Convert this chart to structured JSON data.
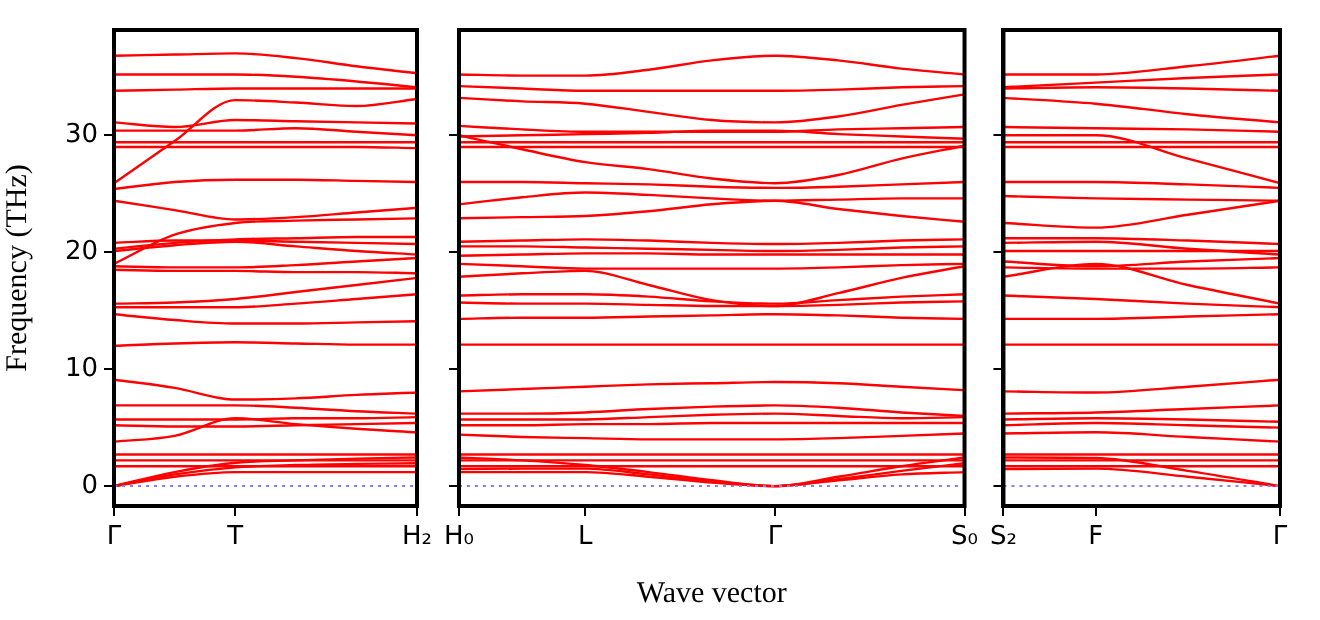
{
  "chart_data": [
    {
      "type": "line",
      "ylabel": "Frequency (THz)",
      "categories": [
        "Γ",
        null,
        "T",
        null,
        null,
        "H₂"
      ],
      "ylim": [
        -1.7,
        39
      ],
      "yticks": [
        0,
        10,
        20,
        30
      ],
      "ref_lines": [
        {
          "axis": "y",
          "value": 0,
          "color": "#8080ff",
          "line_style": "dotted"
        }
      ],
      "series": [
        {
          "color": "#ff0000",
          "values": [
            36.8,
            36.9,
            37.0,
            36.6,
            35.9,
            35.3
          ]
        },
        {
          "color": "#ff0000",
          "values": [
            35.2,
            35.2,
            35.2,
            35.0,
            34.6,
            34.1
          ]
        },
        {
          "color": "#ff0000",
          "values": [
            33.8,
            33.9,
            34.0,
            34.0,
            34.0,
            34.0
          ]
        },
        {
          "color": "#ff0000",
          "values": [
            25.9,
            29.5,
            33.0,
            32.8,
            32.5,
            33.1
          ]
        },
        {
          "color": "#ff0000",
          "values": [
            31.1,
            30.7,
            31.3,
            31.2,
            31.1,
            31.0
          ]
        },
        {
          "color": "#ff0000",
          "values": [
            30.4,
            30.4,
            30.4,
            30.6,
            30.3,
            30.0
          ]
        },
        {
          "color": "#ff0000",
          "values": [
            29.4,
            29.4,
            29.4,
            29.4,
            29.4,
            29.4
          ]
        },
        {
          "color": "#ff0000",
          "values": [
            29.0,
            29.0,
            29.0,
            29.0,
            29.0,
            28.9
          ]
        },
        {
          "color": "#ff0000",
          "values": [
            25.4,
            26.0,
            26.2,
            26.2,
            26.1,
            26.0
          ]
        },
        {
          "color": "#ff0000",
          "values": [
            24.4,
            23.6,
            22.8,
            23.0,
            23.4,
            23.8
          ]
        },
        {
          "color": "#ff0000",
          "values": [
            19.0,
            21.5,
            22.5,
            22.7,
            22.8,
            22.9
          ]
        },
        {
          "color": "#ff0000",
          "values": [
            20.3,
            20.8,
            21.1,
            21.2,
            21.3,
            21.3
          ]
        },
        {
          "color": "#ff0000",
          "values": [
            20.8,
            21.0,
            21.0,
            20.9,
            20.8,
            20.7
          ]
        },
        {
          "color": "#ff0000",
          "values": [
            20.1,
            20.6,
            20.9,
            20.5,
            20.1,
            19.8
          ]
        },
        {
          "color": "#ff0000",
          "values": [
            18.8,
            18.7,
            18.7,
            18.9,
            19.2,
            19.5
          ]
        },
        {
          "color": "#ff0000",
          "values": [
            18.5,
            18.4,
            18.4,
            18.3,
            18.3,
            18.2
          ]
        },
        {
          "color": "#ff0000",
          "values": [
            15.6,
            15.7,
            16.0,
            16.6,
            17.2,
            17.8
          ]
        },
        {
          "color": "#ff0000",
          "values": [
            15.3,
            15.3,
            15.3,
            15.6,
            16.0,
            16.4
          ]
        },
        {
          "color": "#ff0000",
          "values": [
            14.7,
            14.2,
            13.9,
            13.9,
            14.0,
            14.1
          ]
        },
        {
          "color": "#ff0000",
          "values": [
            12.0,
            12.2,
            12.3,
            12.2,
            12.1,
            12.1
          ]
        },
        {
          "color": "#ff0000",
          "values": [
            9.1,
            8.4,
            7.4,
            7.5,
            7.8,
            8.0
          ]
        },
        {
          "color": "#ff0000",
          "values": [
            6.9,
            6.9,
            6.9,
            6.7,
            6.4,
            6.2
          ]
        },
        {
          "color": "#ff0000",
          "values": [
            5.7,
            5.7,
            5.7,
            5.8,
            5.8,
            5.9
          ]
        },
        {
          "color": "#ff0000",
          "values": [
            5.2,
            5.1,
            5.1,
            5.2,
            5.3,
            5.4
          ]
        },
        {
          "color": "#ff0000",
          "values": [
            3.8,
            4.3,
            5.8,
            5.3,
            4.9,
            4.6
          ]
        },
        {
          "color": "#ff0000",
          "values": [
            2.7,
            2.7,
            2.7,
            2.7,
            2.7,
            2.7
          ]
        },
        {
          "color": "#ff0000",
          "values": [
            2.2,
            2.2,
            2.2,
            2.2,
            2.2,
            2.2
          ]
        },
        {
          "color": "#ff0000",
          "values": [
            1.7,
            1.7,
            1.7,
            1.7,
            1.7,
            1.7
          ]
        },
        {
          "color": "#ff0000",
          "values": [
            0,
            0.8,
            1.2,
            1.2,
            1.2,
            1.2
          ]
        },
        {
          "color": "#ff0000",
          "values": [
            0,
            1.0,
            1.6,
            1.8,
            1.9,
            1.95
          ]
        },
        {
          "color": "#ff0000",
          "values": [
            0,
            1.2,
            2.0,
            2.2,
            2.35,
            2.45
          ]
        }
      ]
    },
    {
      "type": "line",
      "xlabel": "Wave vector",
      "tick_labels": "x",
      "categories": [
        "H₀",
        null,
        "L",
        null,
        null,
        "Γ",
        null,
        null,
        "S₀"
      ],
      "ylim": [
        -1.7,
        39
      ],
      "yticks": [
        0,
        10,
        20,
        30
      ],
      "ref_lines": [
        {
          "axis": "y",
          "value": 0,
          "color": "#8080ff",
          "line_style": "dotted"
        }
      ],
      "series": [
        {
          "color": "#ff0000",
          "values": [
            35.2,
            35.1,
            35.1,
            35.6,
            36.4,
            36.8,
            36.4,
            35.7,
            35.2
          ]
        },
        {
          "color": "#ff0000",
          "values": [
            34.2,
            34.0,
            33.8,
            33.8,
            33.8,
            33.8,
            33.9,
            34.1,
            34.2
          ]
        },
        {
          "color": "#ff0000",
          "values": [
            33.2,
            32.9,
            32.7,
            32.0,
            31.3,
            31.1,
            31.6,
            32.6,
            33.5
          ]
        },
        {
          "color": "#ff0000",
          "values": [
            30.8,
            30.5,
            30.3,
            30.3,
            30.3,
            30.3,
            30.5,
            30.6,
            30.7
          ]
        },
        {
          "color": "#ff0000",
          "values": [
            29.9,
            30.0,
            30.1,
            30.2,
            30.4,
            30.4,
            30.1,
            29.9,
            29.7
          ]
        },
        {
          "color": "#ff0000",
          "values": [
            29.4,
            29.4,
            29.4,
            29.4,
            29.4,
            29.4,
            29.4,
            29.4,
            29.4
          ]
        },
        {
          "color": "#ff0000",
          "values": [
            29.0,
            29.0,
            29.0,
            29.0,
            29.0,
            29.0,
            29.0,
            29.0,
            29.0
          ]
        },
        {
          "color": "#ff0000",
          "values": [
            30.0,
            28.8,
            27.7,
            27.1,
            26.3,
            25.9,
            26.6,
            28.0,
            29.1
          ]
        },
        {
          "color": "#ff0000",
          "values": [
            26.0,
            26.0,
            25.9,
            25.8,
            25.6,
            25.5,
            25.6,
            25.8,
            26.0
          ]
        },
        {
          "color": "#ff0000",
          "values": [
            24.1,
            24.7,
            25.1,
            24.9,
            24.6,
            24.4,
            24.5,
            24.6,
            24.6
          ]
        },
        {
          "color": "#ff0000",
          "values": [
            22.9,
            23.0,
            23.1,
            23.5,
            24.1,
            24.4,
            23.7,
            23.1,
            22.6
          ]
        },
        {
          "color": "#ff0000",
          "values": [
            20.9,
            21.0,
            21.1,
            21.0,
            20.8,
            20.7,
            20.8,
            21.0,
            21.1
          ]
        },
        {
          "color": "#ff0000",
          "values": [
            20.5,
            20.5,
            20.4,
            20.3,
            20.2,
            20.1,
            20.2,
            20.4,
            20.5
          ]
        },
        {
          "color": "#ff0000",
          "values": [
            19.7,
            19.8,
            19.9,
            19.9,
            19.8,
            19.8,
            19.8,
            19.8,
            19.8
          ]
        },
        {
          "color": "#ff0000",
          "values": [
            19.0,
            18.8,
            18.6,
            18.6,
            18.6,
            18.6,
            18.7,
            18.9,
            19.0
          ]
        },
        {
          "color": "#ff0000",
          "values": [
            16.3,
            16.4,
            16.4,
            16.2,
            15.8,
            15.6,
            15.9,
            16.2,
            16.4
          ]
        },
        {
          "color": "#ff0000",
          "values": [
            17.9,
            18.2,
            18.4,
            17.2,
            15.9,
            15.4,
            16.5,
            17.8,
            18.8
          ]
        },
        {
          "color": "#ff0000",
          "values": [
            15.7,
            15.6,
            15.6,
            15.5,
            15.4,
            15.4,
            15.5,
            15.7,
            15.8
          ]
        },
        {
          "color": "#ff0000",
          "values": [
            14.3,
            14.4,
            14.4,
            14.5,
            14.6,
            14.7,
            14.6,
            14.4,
            14.3
          ]
        },
        {
          "color": "#ff0000",
          "values": [
            12.1,
            12.1,
            12.1,
            12.1,
            12.1,
            12.1,
            12.1,
            12.1,
            12.1
          ]
        },
        {
          "color": "#ff0000",
          "values": [
            8.1,
            8.3,
            8.5,
            8.7,
            8.8,
            8.9,
            8.8,
            8.5,
            8.2
          ]
        },
        {
          "color": "#ff0000",
          "values": [
            6.2,
            6.2,
            6.3,
            6.6,
            6.8,
            6.9,
            6.7,
            6.3,
            6.0
          ]
        },
        {
          "color": "#ff0000",
          "values": [
            5.7,
            5.7,
            5.7,
            5.9,
            6.1,
            6.2,
            6.0,
            5.8,
            5.9
          ]
        },
        {
          "color": "#ff0000",
          "values": [
            5.2,
            5.2,
            5.3,
            5.3,
            5.4,
            5.4,
            5.4,
            5.4,
            5.4
          ]
        },
        {
          "color": "#ff0000",
          "values": [
            4.4,
            4.2,
            4.1,
            4.0,
            4.0,
            4.0,
            4.1,
            4.3,
            4.5
          ]
        },
        {
          "color": "#ff0000",
          "values": [
            2.7,
            2.7,
            2.7,
            2.7,
            2.7,
            2.7,
            2.7,
            2.7,
            2.7
          ]
        },
        {
          "color": "#ff0000",
          "values": [
            2.2,
            2.2,
            2.2,
            2.2,
            2.2,
            2.2,
            2.2,
            2.2,
            2.2
          ]
        },
        {
          "color": "#ff0000",
          "values": [
            1.7,
            1.7,
            1.7,
            1.7,
            1.7,
            1.7,
            1.7,
            1.7,
            1.7
          ]
        },
        {
          "color": "#ff0000",
          "values": [
            2.45,
            2.2,
            1.8,
            1.2,
            0.5,
            0,
            0.5,
            1.0,
            1.2
          ]
        },
        {
          "color": "#ff0000",
          "values": [
            1.45,
            1.5,
            1.5,
            1.0,
            0.4,
            0,
            0.8,
            1.7,
            2.45
          ]
        },
        {
          "color": "#ff0000",
          "values": [
            1.2,
            1.2,
            1.2,
            0.8,
            0.3,
            0,
            0.6,
            1.3,
            1.95
          ]
        }
      ]
    },
    {
      "type": "line",
      "tick_labels": "x",
      "categories": [
        "S₂",
        "F",
        null,
        "Γ"
      ],
      "ylim": [
        -1.7,
        39
      ],
      "yticks": [
        0,
        10,
        20,
        30
      ],
      "ref_lines": [
        {
          "axis": "y",
          "value": 0,
          "color": "#8080ff",
          "line_style": "dotted"
        }
      ],
      "series": [
        {
          "color": "#ff0000",
          "values": [
            35.2,
            35.2,
            35.9,
            36.8
          ]
        },
        {
          "color": "#ff0000",
          "values": [
            34.1,
            34.5,
            34.9,
            35.2
          ]
        },
        {
          "color": "#ff0000",
          "values": [
            34.0,
            34.1,
            34.0,
            33.8
          ]
        },
        {
          "color": "#ff0000",
          "values": [
            33.2,
            32.7,
            31.8,
            31.1
          ]
        },
        {
          "color": "#ff0000",
          "values": [
            30.7,
            30.6,
            30.5,
            30.3
          ]
        },
        {
          "color": "#ff0000",
          "values": [
            30.0,
            30.0,
            28.0,
            25.9
          ]
        },
        {
          "color": "#ff0000",
          "values": [
            29.4,
            29.4,
            29.4,
            29.4
          ]
        },
        {
          "color": "#ff0000",
          "values": [
            29.0,
            29.0,
            29.0,
            29.0
          ]
        },
        {
          "color": "#ff0000",
          "values": [
            26.0,
            26.0,
            25.8,
            25.5
          ]
        },
        {
          "color": "#ff0000",
          "values": [
            24.8,
            24.6,
            24.5,
            24.4
          ]
        },
        {
          "color": "#ff0000",
          "values": [
            22.5,
            22.1,
            23.2,
            24.4
          ]
        },
        {
          "color": "#ff0000",
          "values": [
            21.2,
            21.2,
            21.0,
            20.7
          ]
        },
        {
          "color": "#ff0000",
          "values": [
            20.8,
            20.9,
            20.3,
            19.8
          ]
        },
        {
          "color": "#ff0000",
          "values": [
            20.1,
            20.1,
            20.1,
            20.1
          ]
        },
        {
          "color": "#ff0000",
          "values": [
            19.2,
            18.8,
            19.2,
            19.5
          ]
        },
        {
          "color": "#ff0000",
          "values": [
            18.7,
            18.6,
            18.6,
            18.7
          ]
        },
        {
          "color": "#ff0000",
          "values": [
            17.9,
            19.0,
            17.2,
            15.6
          ]
        },
        {
          "color": "#ff0000",
          "values": [
            16.3,
            16.0,
            15.6,
            15.3
          ]
        },
        {
          "color": "#ff0000",
          "values": [
            14.3,
            14.3,
            14.5,
            14.7
          ]
        },
        {
          "color": "#ff0000",
          "values": [
            12.1,
            12.1,
            12.1,
            12.1
          ]
        },
        {
          "color": "#ff0000",
          "values": [
            8.1,
            8.0,
            8.5,
            9.1
          ]
        },
        {
          "color": "#ff0000",
          "values": [
            6.2,
            6.3,
            6.6,
            6.9
          ]
        },
        {
          "color": "#ff0000",
          "values": [
            5.7,
            5.8,
            5.7,
            5.5
          ]
        },
        {
          "color": "#ff0000",
          "values": [
            5.2,
            5.4,
            5.2,
            5.0
          ]
        },
        {
          "color": "#ff0000",
          "values": [
            4.5,
            4.6,
            4.2,
            3.8
          ]
        },
        {
          "color": "#ff0000",
          "values": [
            2.7,
            2.7,
            2.7,
            2.7
          ]
        },
        {
          "color": "#ff0000",
          "values": [
            2.2,
            2.2,
            2.2,
            2.2
          ]
        },
        {
          "color": "#ff0000",
          "values": [
            1.7,
            1.7,
            1.7,
            1.7
          ]
        },
        {
          "color": "#ff0000",
          "values": [
            2.45,
            2.4,
            1.3,
            0
          ]
        },
        {
          "color": "#ff0000",
          "values": [
            1.45,
            1.5,
            0.8,
            0
          ]
        }
      ]
    }
  ]
}
